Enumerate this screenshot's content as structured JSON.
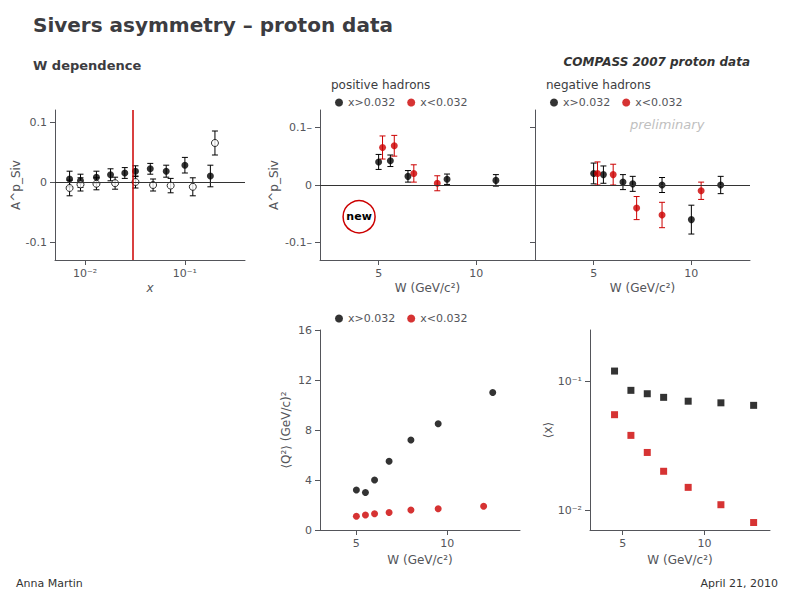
{
  "chart_data": [
    {
      "type": "scatter",
      "title": "Sivers asymmetry – proton data",
      "subtitle": "W dependence",
      "annotations": [
        {
          "text": "Anna Martin"
        },
        {
          "text": "April 21, 2010"
        }
      ],
      "x_label": "x",
      "y_label": "A^p_Siv",
      "log": "x",
      "xlim": [
        0.005,
        0.4
      ],
      "xticks": [
        {
          "value": 0.01,
          "label": "10⁻²"
        },
        {
          "value": 0.1,
          "label": "10⁻¹"
        }
      ],
      "ylim": [
        -0.13,
        0.12
      ],
      "yticks": [
        -0.1,
        0,
        0.1
      ],
      "grid": false,
      "hline": 0,
      "vline": {
        "x": 0.032,
        "color": "#cc0000"
      },
      "series": [
        {
          "color": "#000000",
          "marker": "circle",
          "x": [
            0.007,
            0.009,
            0.013,
            0.018,
            0.025,
            0.032,
            0.045,
            0.065,
            0.1,
            0.18
          ],
          "values": [
            0.005,
            0.002,
            0.008,
            0.012,
            0.015,
            0.018,
            0.022,
            0.018,
            0.028,
            0.01
          ],
          "errors": [
            0.013,
            0.011,
            0.01,
            0.01,
            0.009,
            0.009,
            0.009,
            0.01,
            0.013,
            0.018
          ]
        },
        {
          "color": "#000000",
          "marker": "open_circle",
          "x": [
            0.007,
            0.009,
            0.013,
            0.02,
            0.032,
            0.048,
            0.072,
            0.12,
            0.2
          ],
          "values": [
            -0.01,
            -0.004,
            -0.003,
            -0.002,
            0.0,
            -0.005,
            -0.006,
            -0.008,
            0.065
          ],
          "errors": [
            0.013,
            0.011,
            0.01,
            0.01,
            0.01,
            0.01,
            0.012,
            0.015,
            0.02
          ]
        }
      ]
    },
    {
      "type": "scatter",
      "title": "positive hadrons",
      "annotations": [
        {
          "text": "COMPASS 2007 proton data"
        },
        {
          "text": "new",
          "x": 4.0,
          "y": -0.055,
          "color": "#cc0000"
        }
      ],
      "x_label": "W (GeV/c²)",
      "y_label": "A^p_Siv",
      "xlim": [
        2,
        13
      ],
      "xticks": [
        5,
        10
      ],
      "ylim": [
        -0.13,
        0.13
      ],
      "yticks": [
        {
          "value": -0.1,
          "label": "-0.1–"
        },
        0,
        {
          "value": 0.1,
          "label": "0.1–"
        }
      ],
      "grid": false,
      "hline": 0,
      "legend": "top",
      "series": [
        {
          "name": "x>0.032",
          "color": "#000000",
          "marker": "circle",
          "x": [
            5.0,
            5.6,
            6.5,
            8.5,
            11.0
          ],
          "values": [
            0.04,
            0.042,
            0.015,
            0.01,
            0.008
          ],
          "errors": [
            0.013,
            0.01,
            0.01,
            0.009,
            0.01
          ]
        },
        {
          "name": "x<0.032",
          "color": "#cc0000",
          "marker": "circle",
          "x": [
            5.2,
            5.8,
            6.8,
            8.0
          ],
          "values": [
            0.065,
            0.068,
            0.02,
            0.003
          ],
          "errors": [
            0.02,
            0.018,
            0.015,
            0.013
          ]
        }
      ]
    },
    {
      "type": "scatter",
      "title": "negative hadrons",
      "annotations": [
        {
          "text": "preliminary",
          "color": "#c0c0c0"
        }
      ],
      "x_label": "W (GeV/c²)",
      "xlim": [
        2,
        13
      ],
      "xticks": [
        5,
        10
      ],
      "ylim": [
        -0.13,
        0.13
      ],
      "yticks": [
        -0.1,
        0,
        0.1
      ],
      "tick_labels": "x",
      "grid": false,
      "hline": 0,
      "legend": "top",
      "series": [
        {
          "name": "x>0.032",
          "color": "#000000",
          "marker": "circle",
          "x": [
            5.0,
            5.5,
            6.5,
            7.0,
            8.5,
            10.0,
            11.5
          ],
          "values": [
            0.02,
            0.018,
            0.005,
            0.002,
            0.0,
            -0.06,
            0.0
          ],
          "errors": [
            0.018,
            0.015,
            0.013,
            0.013,
            0.013,
            0.025,
            0.015
          ]
        },
        {
          "name": "x<0.032",
          "color": "#cc0000",
          "marker": "circle",
          "x": [
            5.2,
            6.0,
            7.2,
            8.5,
            10.5
          ],
          "values": [
            0.02,
            0.018,
            -0.04,
            -0.052,
            -0.01
          ],
          "errors": [
            0.02,
            0.018,
            0.02,
            0.022,
            0.015
          ]
        }
      ]
    },
    {
      "type": "scatter",
      "x_label": "W (GeV/c²)",
      "y_label": "⟨Q²⟩ (GeV/c)²",
      "xlim": [
        3,
        14
      ],
      "xticks": [
        5,
        10
      ],
      "ylim": [
        0,
        16
      ],
      "yticks": [
        0,
        4,
        8,
        12,
        16
      ],
      "grid": false,
      "legend": "top",
      "series": [
        {
          "name": "x>0.032",
          "color": "#000000",
          "marker": "circle",
          "x": [
            5.0,
            5.5,
            6.0,
            6.8,
            8.0,
            9.5,
            12.5
          ],
          "values": [
            3.2,
            3.0,
            4.0,
            5.5,
            7.2,
            8.5,
            11.0
          ]
        },
        {
          "name": "x<0.032",
          "color": "#cc0000",
          "marker": "circle",
          "x": [
            5.0,
            5.5,
            6.0,
            6.8,
            8.0,
            9.5,
            12.0
          ],
          "values": [
            1.1,
            1.2,
            1.3,
            1.4,
            1.6,
            1.7,
            1.9
          ]
        }
      ]
    },
    {
      "type": "scatter",
      "x_label": "W (GeV/c²)",
      "y_label": "⟨x⟩",
      "log": "y",
      "xlim": [
        3,
        14
      ],
      "xticks": [
        5,
        10
      ],
      "ylim": [
        0.007,
        0.25
      ],
      "yticks": [
        {
          "value": 0.01,
          "label": "10⁻²"
        },
        {
          "value": 0.1,
          "label": "10⁻¹"
        }
      ],
      "grid": false,
      "series": [
        {
          "color": "#000000",
          "marker": "square",
          "x": [
            4.5,
            5.5,
            6.5,
            7.5,
            9.0,
            11.0,
            13.0
          ],
          "values": [
            0.12,
            0.085,
            0.08,
            0.075,
            0.07,
            0.068,
            0.065
          ]
        },
        {
          "color": "#cc0000",
          "marker": "square",
          "x": [
            4.5,
            5.5,
            6.5,
            7.5,
            9.0,
            11.0,
            13.0
          ],
          "values": [
            0.055,
            0.038,
            0.028,
            0.02,
            0.015,
            0.011,
            0.008
          ]
        }
      ]
    }
  ]
}
